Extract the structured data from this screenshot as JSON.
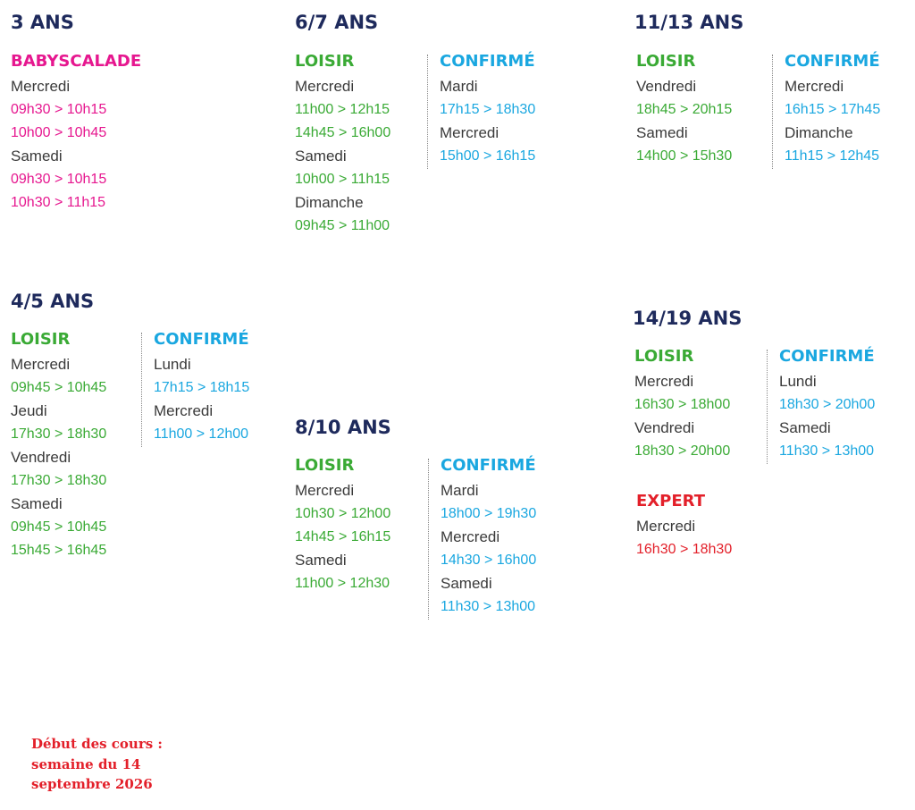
{
  "groups": [
    {
      "title": "3 ANS",
      "levels": [
        {
          "name": "BABYSCALADE",
          "color": "#e6178f",
          "schedule": [
            {
              "day": "Mercredi",
              "times": [
                "09h30 > 10h15",
                "10h00 > 10h45"
              ]
            },
            {
              "day": "Samedi",
              "times": [
                "09h30 > 10h15",
                "10h30 > 11h15"
              ]
            }
          ]
        }
      ]
    },
    {
      "title": "6/7 ANS",
      "levels": [
        {
          "name": "LOISIR",
          "color": "#3aaa35",
          "schedule": [
            {
              "day": "Mercredi",
              "times": [
                "11h00 > 12h15",
                "14h45 > 16h00"
              ]
            },
            {
              "day": "Samedi",
              "times": [
                "10h00 > 11h15"
              ]
            },
            {
              "day": "Dimanche",
              "times": [
                "09h45 > 11h00"
              ]
            }
          ]
        },
        {
          "name": "CONFIRMÉ",
          "color": "#1aa7e0",
          "schedule": [
            {
              "day": "Mardi",
              "times": [
                "17h15 > 18h30"
              ]
            },
            {
              "day": "Mercredi",
              "times": [
                "15h00 > 16h15"
              ]
            }
          ]
        }
      ]
    },
    {
      "title": "11/13 ANS",
      "levels": [
        {
          "name": "LOISIR",
          "color": "#3aaa35",
          "schedule": [
            {
              "day": "Vendredi",
              "times": [
                "18h45 > 20h15"
              ]
            },
            {
              "day": "Samedi",
              "times": [
                "14h00 > 15h30"
              ]
            }
          ]
        },
        {
          "name": "CONFIRMÉ",
          "color": "#1aa7e0",
          "schedule": [
            {
              "day": "Mercredi",
              "times": [
                "16h15 > 17h45"
              ]
            },
            {
              "day": "Dimanche",
              "times": [
                "11h15 > 12h45"
              ]
            }
          ]
        }
      ]
    },
    {
      "title": "4/5 ANS",
      "levels": [
        {
          "name": "LOISIR",
          "color": "#3aaa35",
          "schedule": [
            {
              "day": "Mercredi",
              "times": [
                "09h45 > 10h45"
              ]
            },
            {
              "day": "Jeudi",
              "times": [
                "17h30 > 18h30"
              ]
            },
            {
              "day": "Vendredi",
              "times": [
                "17h30 > 18h30"
              ]
            },
            {
              "day": "Samedi",
              "times": [
                "09h45 > 10h45",
                "15h45 > 16h45"
              ]
            }
          ]
        },
        {
          "name": "CONFIRMÉ",
          "color": "#1aa7e0",
          "schedule": [
            {
              "day": "Lundi",
              "times": [
                "17h15 > 18h15"
              ]
            },
            {
              "day": "Mercredi",
              "times": [
                "11h00 > 12h00"
              ]
            }
          ]
        }
      ]
    },
    {
      "title": "8/10 ANS",
      "levels": [
        {
          "name": "LOISIR",
          "color": "#3aaa35",
          "schedule": [
            {
              "day": "Mercredi",
              "times": [
                "10h30 > 12h00",
                "14h45 > 16h15"
              ]
            },
            {
              "day": "Samedi",
              "times": [
                "11h00 > 12h30"
              ]
            }
          ]
        },
        {
          "name": "CONFIRMÉ",
          "color": "#1aa7e0",
          "schedule": [
            {
              "day": "Mardi",
              "times": [
                "18h00 > 19h30"
              ]
            },
            {
              "day": "Mercredi",
              "times": [
                "14h30 > 16h00"
              ]
            },
            {
              "day": "Samedi",
              "times": [
                "11h30 > 13h00"
              ]
            }
          ]
        }
      ]
    },
    {
      "title": "14/19 ANS",
      "levels": [
        {
          "name": "LOISIR",
          "color": "#3aaa35",
          "schedule": [
            {
              "day": "Mercredi",
              "times": [
                "16h30 > 18h00"
              ]
            },
            {
              "day": "Vendredi",
              "times": [
                "18h30 > 20h00"
              ]
            }
          ]
        },
        {
          "name": "CONFIRMÉ",
          "color": "#1aa7e0",
          "schedule": [
            {
              "day": "Lundi",
              "times": [
                "18h30 > 20h00"
              ]
            },
            {
              "day": "Samedi",
              "times": [
                "11h30 > 13h00"
              ]
            }
          ]
        },
        {
          "name": "EXPERT",
          "color": "#e3202a",
          "schedule": [
            {
              "day": "Mercredi",
              "times": [
                "16h30 > 18h30"
              ]
            }
          ]
        }
      ]
    }
  ],
  "footer": {
    "lines": [
      "Début des cours :",
      "semaine du 14",
      "septembre 2026"
    ]
  }
}
